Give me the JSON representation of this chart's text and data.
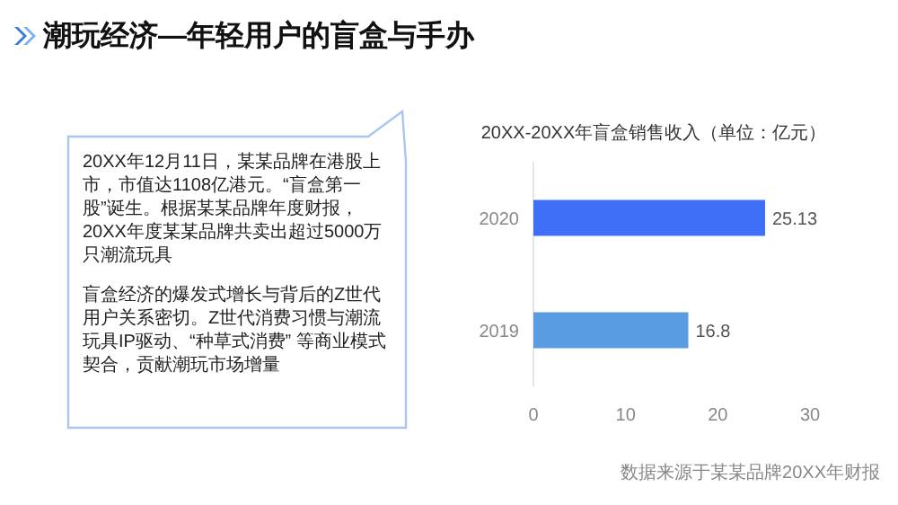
{
  "chart_data": {
    "type": "bar",
    "orientation": "horizontal",
    "title": "潮玩经济—年轻用户的盲盒与手办",
    "subtitle": "20XX-20XX年盲盒销售收入（单位：亿元）",
    "categories": [
      "2020",
      "2019"
    ],
    "values": [
      25.13,
      16.8
    ],
    "colors": [
      "#3e6ff6",
      "#5a9ce2"
    ],
    "xlim": [
      0,
      30
    ],
    "xticks": [
      0,
      10,
      20,
      30
    ],
    "data_labels": true,
    "annotations": [
      "20XX年12月11日，某某品牌在港股上市，市值达1108亿港元。“盲盒第一股”诞生。根据某某品牌年度财报，20XX年度某某品牌共卖出超过5000万只潮流玩具",
      "盲盒经济的爆发式增长与背后的Z世代用户关系密切。Z世代消费习惯与潮流玩具IP驱动、“种草式消费” 等商业模式契合，贡献潮玩市场增量",
      "数据来源于某某品牌20XX年财报"
    ]
  }
}
